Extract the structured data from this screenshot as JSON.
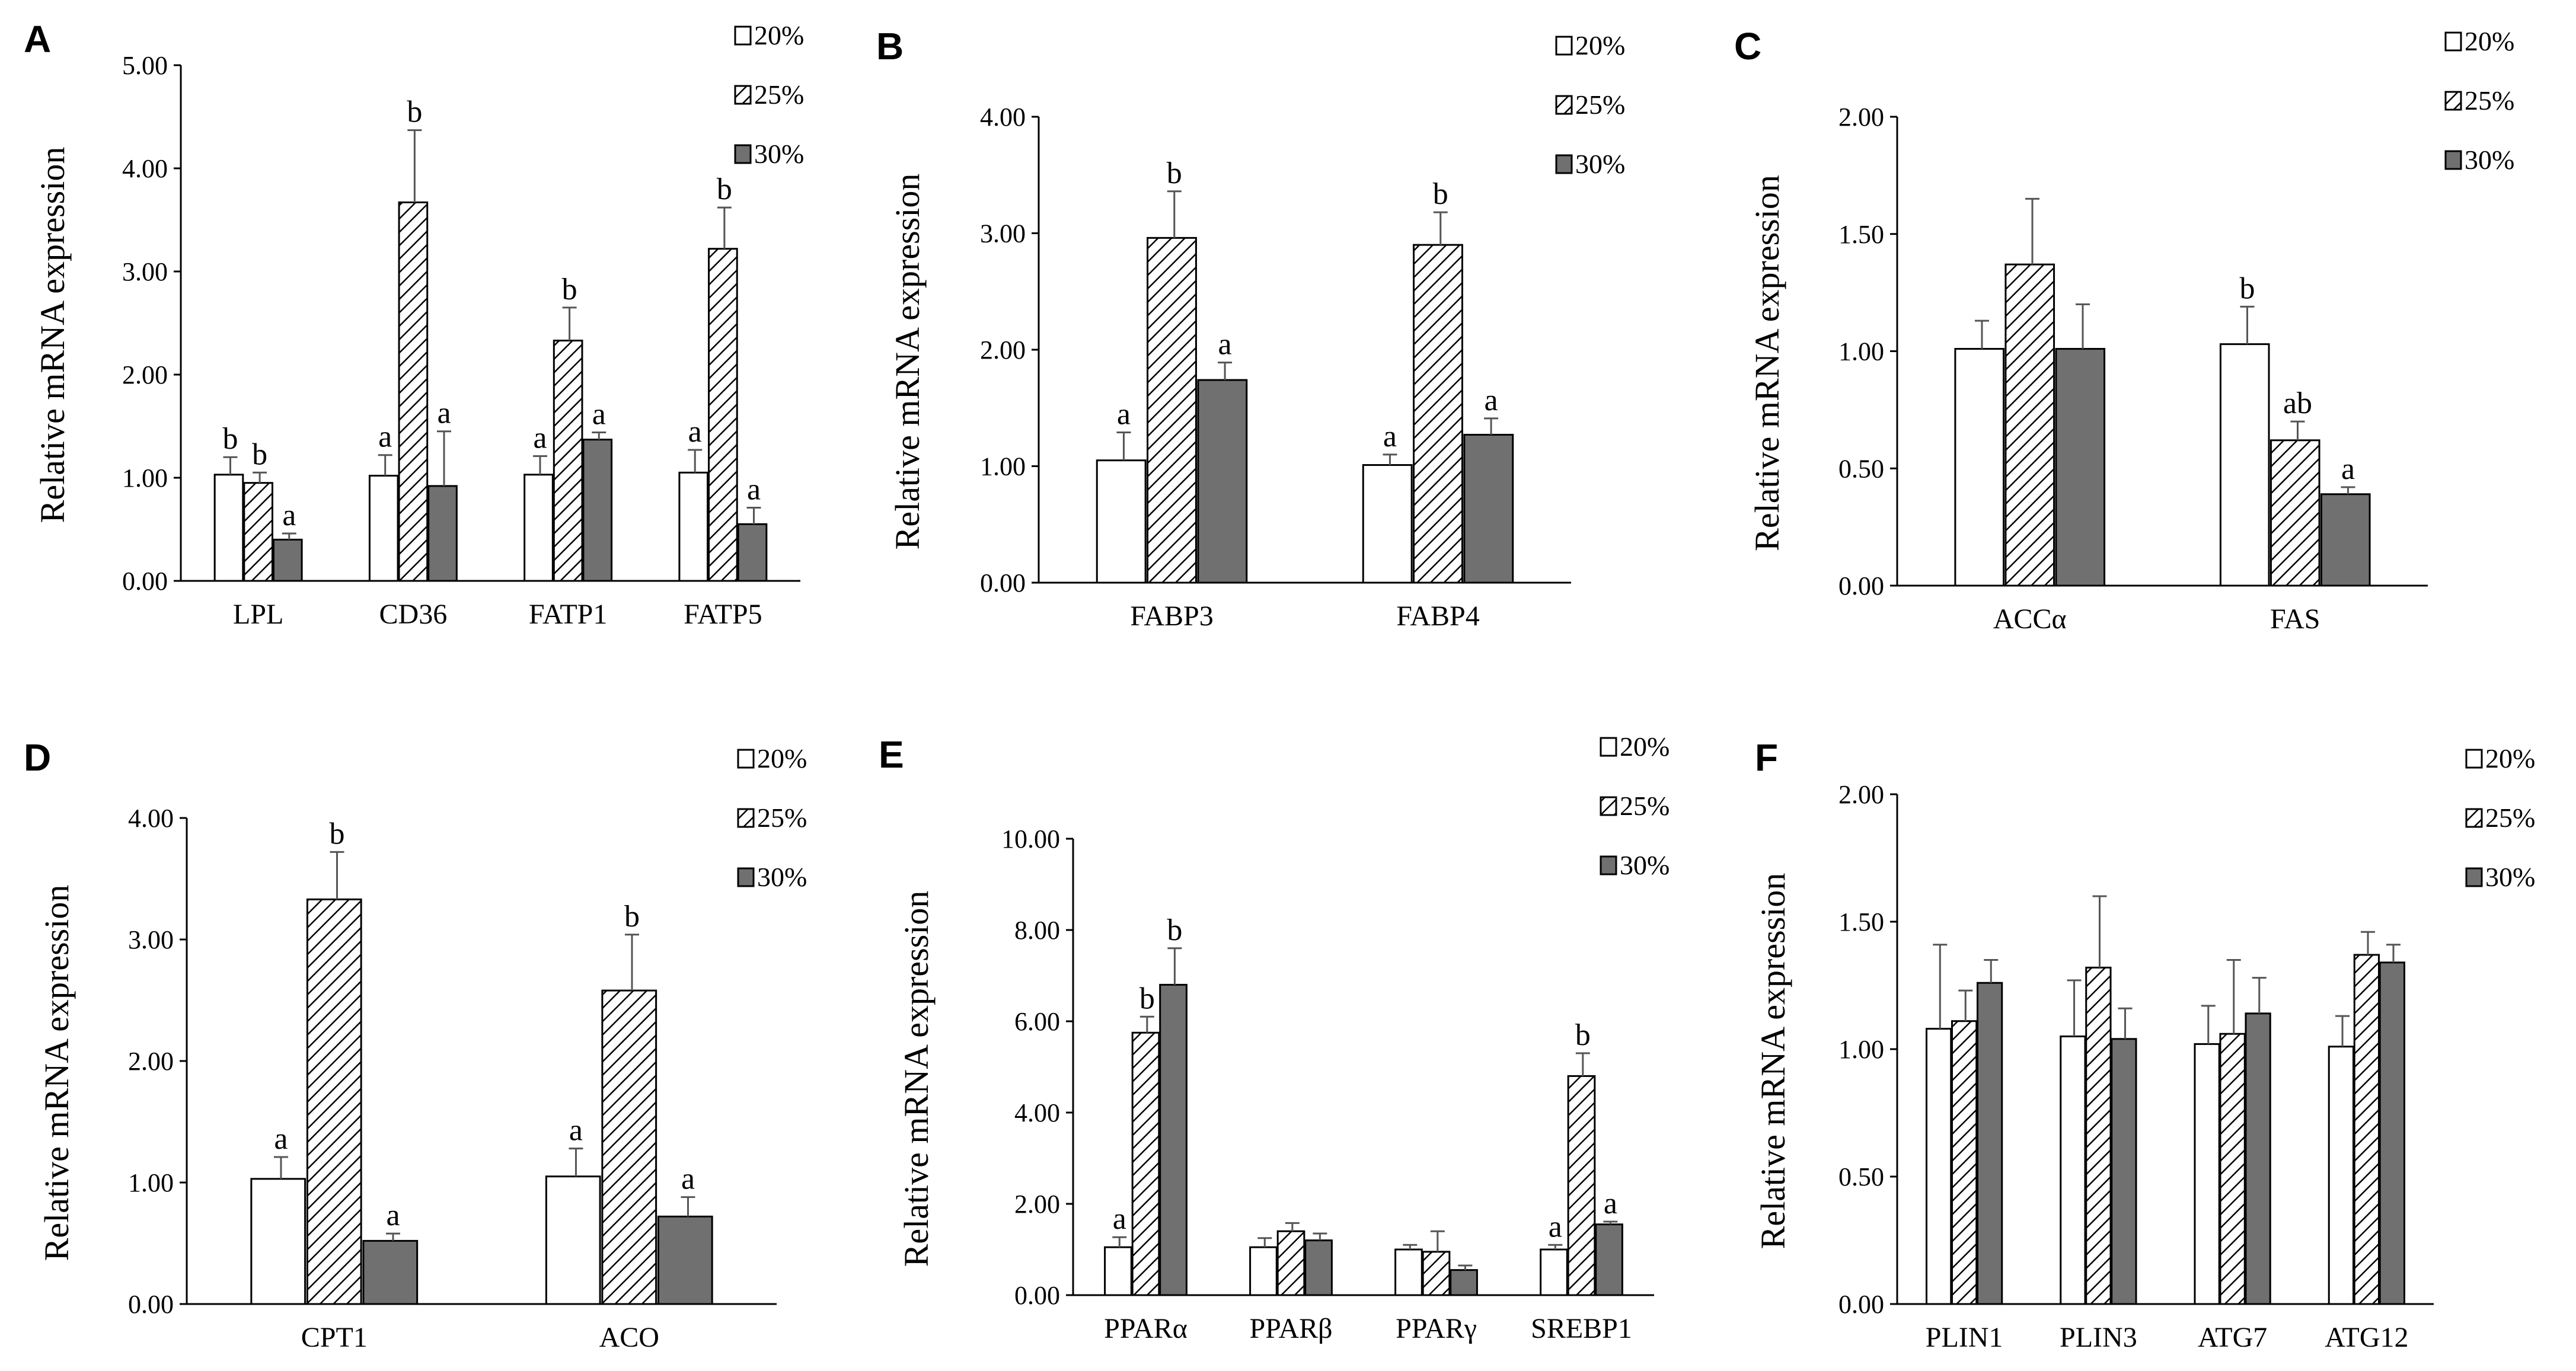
{
  "figure": {
    "background": "#ffffff",
    "axis_color": "#000000"
  },
  "series_styles": [
    {
      "name": "20%",
      "fill": "white"
    },
    {
      "name": "25%",
      "fill": "hatch"
    },
    {
      "name": "30%",
      "fill": "#707070"
    }
  ],
  "chart_data": [
    {
      "panel": "A",
      "type": "bar",
      "ylabel": "Relative mRNA expression",
      "ylim": [
        0,
        5
      ],
      "yticks": [
        "0.00",
        "1.00",
        "2.00",
        "3.00",
        "4.00",
        "5.00"
      ],
      "categories": [
        "LPL",
        "CD36",
        "FATP1",
        "FATP5"
      ],
      "series": [
        {
          "name": "20%",
          "values": [
            1.03,
            1.02,
            1.03,
            1.05
          ],
          "errors": [
            0.17,
            0.2,
            0.18,
            0.22
          ],
          "labels": [
            "b",
            "a",
            "a",
            "a"
          ]
        },
        {
          "name": "25%",
          "values": [
            0.95,
            3.67,
            2.33,
            3.22
          ],
          "errors": [
            0.1,
            0.7,
            0.32,
            0.4
          ],
          "labels": [
            "b",
            "b",
            "b",
            "b"
          ]
        },
        {
          "name": "30%",
          "values": [
            0.4,
            0.92,
            1.37,
            0.55
          ],
          "errors": [
            0.06,
            0.53,
            0.07,
            0.16
          ],
          "labels": [
            "a",
            "a",
            "a",
            "a"
          ]
        }
      ]
    },
    {
      "panel": "B",
      "type": "bar",
      "ylabel": "Relative mRNA expression",
      "ylim": [
        0,
        4
      ],
      "yticks": [
        "0.00",
        "1.00",
        "2.00",
        "3.00",
        "4.00"
      ],
      "categories": [
        "FABP3",
        "FABP4"
      ],
      "series": [
        {
          "name": "20%",
          "values": [
            1.05,
            1.01
          ],
          "errors": [
            0.24,
            0.09
          ],
          "labels": [
            "a",
            "a"
          ]
        },
        {
          "name": "25%",
          "values": [
            2.96,
            2.9
          ],
          "errors": [
            0.4,
            0.28
          ],
          "labels": [
            "b",
            "b"
          ]
        },
        {
          "name": "30%",
          "values": [
            1.74,
            1.27
          ],
          "errors": [
            0.15,
            0.14
          ],
          "labels": [
            "a",
            "a"
          ]
        }
      ]
    },
    {
      "panel": "C",
      "type": "bar",
      "ylabel": "Relative mRNA expression",
      "ylim": [
        0,
        2
      ],
      "yticks": [
        "0.00",
        "0.50",
        "1.00",
        "1.50",
        "2.00"
      ],
      "categories": [
        "ACCα",
        "FAS"
      ],
      "series": [
        {
          "name": "20%",
          "values": [
            1.01,
            1.03
          ],
          "errors": [
            0.12,
            0.16
          ],
          "labels": [
            "",
            "b"
          ]
        },
        {
          "name": "25%",
          "values": [
            1.37,
            0.62
          ],
          "errors": [
            0.28,
            0.08
          ],
          "labels": [
            "",
            "ab"
          ]
        },
        {
          "name": "30%",
          "values": [
            1.01,
            0.39
          ],
          "errors": [
            0.19,
            0.03
          ],
          "labels": [
            "",
            "a"
          ]
        }
      ]
    },
    {
      "panel": "D",
      "type": "bar",
      "ylabel": "Relative mRNA expression",
      "ylim": [
        0,
        4
      ],
      "yticks": [
        "0.00",
        "1.00",
        "2.00",
        "3.00",
        "4.00"
      ],
      "categories": [
        "CPT1",
        "ACO"
      ],
      "series": [
        {
          "name": "20%",
          "values": [
            1.03,
            1.05
          ],
          "errors": [
            0.18,
            0.23
          ],
          "labels": [
            "a",
            "a"
          ]
        },
        {
          "name": "25%",
          "values": [
            3.33,
            2.58
          ],
          "errors": [
            0.39,
            0.46
          ],
          "labels": [
            "b",
            "b"
          ]
        },
        {
          "name": "30%",
          "values": [
            0.52,
            0.72
          ],
          "errors": [
            0.06,
            0.16
          ],
          "labels": [
            "a",
            "a"
          ]
        }
      ]
    },
    {
      "panel": "E",
      "type": "bar",
      "ylabel": "Relative mRNA expression",
      "ylim": [
        0,
        10
      ],
      "yticks": [
        "0.00",
        "2.00",
        "4.00",
        "6.00",
        "8.00",
        "10.00"
      ],
      "categories": [
        "PPARα",
        "PPARβ",
        "PPARγ",
        "SREBP1"
      ],
      "series": [
        {
          "name": "20%",
          "values": [
            1.05,
            1.05,
            1.0,
            1.0
          ],
          "errors": [
            0.22,
            0.2,
            0.1,
            0.1
          ],
          "labels": [
            "a",
            "",
            "",
            "a"
          ]
        },
        {
          "name": "25%",
          "values": [
            5.75,
            1.4,
            0.95,
            4.8
          ],
          "errors": [
            0.35,
            0.18,
            0.45,
            0.5
          ],
          "labels": [
            "b",
            "",
            "",
            "b"
          ]
        },
        {
          "name": "30%",
          "values": [
            6.8,
            1.2,
            0.55,
            1.55
          ],
          "errors": [
            0.8,
            0.15,
            0.1,
            0.06
          ],
          "labels": [
            "b",
            "",
            "",
            "a"
          ]
        }
      ]
    },
    {
      "panel": "F",
      "type": "bar",
      "ylabel": "Relative mRNA expression",
      "ylim": [
        0,
        2
      ],
      "yticks": [
        "0.00",
        "0.50",
        "1.00",
        "1.50",
        "2.00"
      ],
      "categories": [
        "PLIN1",
        "PLIN3",
        "ATG7",
        "ATG12"
      ],
      "series": [
        {
          "name": "20%",
          "values": [
            1.08,
            1.05,
            1.02,
            1.01
          ],
          "errors": [
            0.33,
            0.22,
            0.15,
            0.12
          ],
          "labels": [
            "",
            "",
            "",
            ""
          ]
        },
        {
          "name": "25%",
          "values": [
            1.11,
            1.32,
            1.06,
            1.37
          ],
          "errors": [
            0.12,
            0.28,
            0.29,
            0.09
          ],
          "labels": [
            "",
            "",
            "",
            ""
          ]
        },
        {
          "name": "30%",
          "values": [
            1.26,
            1.04,
            1.14,
            1.34
          ],
          "errors": [
            0.09,
            0.12,
            0.14,
            0.07
          ],
          "labels": [
            "",
            "",
            "",
            ""
          ]
        }
      ]
    }
  ]
}
